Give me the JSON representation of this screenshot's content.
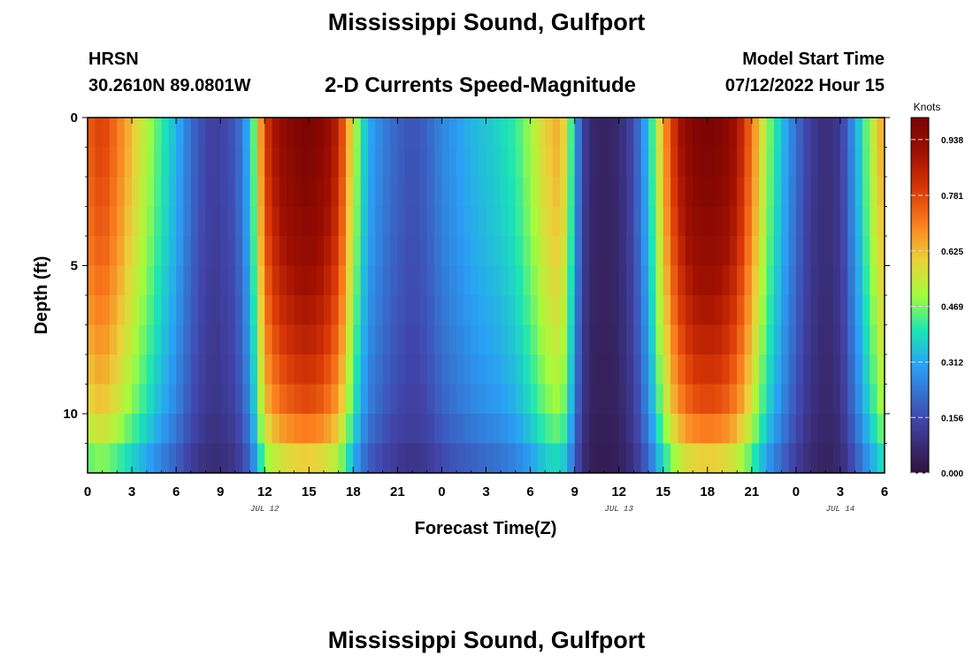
{
  "header": {
    "title": "Mississippi Sound, Gulfport",
    "station_id": "HRSN",
    "coords": "30.2610N  89.0801W",
    "plot_title": "2-D Currents Speed-Magnitude",
    "model_start_label": "Model Start Time",
    "model_start_value": "07/12/2022 Hour 15"
  },
  "footer": {
    "title": "Mississippi Sound, Gulfport"
  },
  "chart_data": {
    "type": "heatmap",
    "title": "2-D Currents Speed-Magnitude",
    "xlabel": "Forecast Time(Z)",
    "ylabel": "Depth (ft)",
    "x_ticks": [
      "0",
      "3",
      "6",
      "9",
      "12",
      "15",
      "18",
      "21",
      "0",
      "3",
      "6",
      "9",
      "12",
      "15",
      "18",
      "21",
      "0",
      "3",
      "6"
    ],
    "x_range_hours": [
      0,
      54
    ],
    "date_labels": [
      {
        "label": "JUL 12",
        "hour": 12
      },
      {
        "label": "JUL 13",
        "hour": 36
      },
      {
        "label": "JUL 14",
        "hour": 51
      }
    ],
    "y_ticks": [
      "0",
      "5",
      "10"
    ],
    "y_range_ft": [
      0,
      12
    ],
    "colorbar": {
      "label": "Knots",
      "ticks": [
        "0.000",
        "0.156",
        "0.312",
        "0.469",
        "0.625",
        "0.781",
        "0.938"
      ],
      "range": [
        0,
        1.0
      ]
    },
    "profile_hours": [
      0,
      1,
      2,
      3,
      4,
      5,
      6,
      7,
      7.5,
      8,
      8.5,
      9,
      10,
      10.5,
      11,
      11.5,
      12,
      13,
      14,
      15,
      16,
      17,
      17.5,
      18,
      18.5,
      19,
      20,
      21,
      22,
      23,
      24,
      26,
      28,
      29,
      30,
      31,
      32,
      32.5,
      33,
      33.5,
      34,
      35,
      36,
      37,
      38,
      39,
      40,
      41,
      42,
      43,
      44,
      45,
      46,
      47,
      48,
      49,
      50,
      51,
      52,
      53,
      54
    ],
    "profile_speed_knots": [
      0.75,
      0.8,
      0.72,
      0.62,
      0.52,
      0.42,
      0.33,
      0.22,
      0.18,
      0.15,
      0.13,
      0.14,
      0.18,
      0.25,
      0.35,
      0.55,
      0.8,
      0.93,
      0.98,
      1.0,
      0.96,
      0.85,
      0.7,
      0.55,
      0.42,
      0.32,
      0.25,
      0.2,
      0.17,
      0.2,
      0.26,
      0.33,
      0.38,
      0.42,
      0.5,
      0.6,
      0.65,
      0.55,
      0.32,
      0.16,
      0.07,
      0.05,
      0.07,
      0.16,
      0.35,
      0.65,
      0.88,
      0.98,
      1.0,
      0.98,
      0.9,
      0.72,
      0.5,
      0.35,
      0.22,
      0.12,
      0.08,
      0.12,
      0.3,
      0.5,
      0.68
    ],
    "depth_factor_ft": [
      0,
      2,
      4,
      6,
      8,
      10,
      12
    ],
    "depth_factor": [
      1.0,
      0.98,
      0.95,
      0.9,
      0.84,
      0.76,
      0.55
    ]
  }
}
